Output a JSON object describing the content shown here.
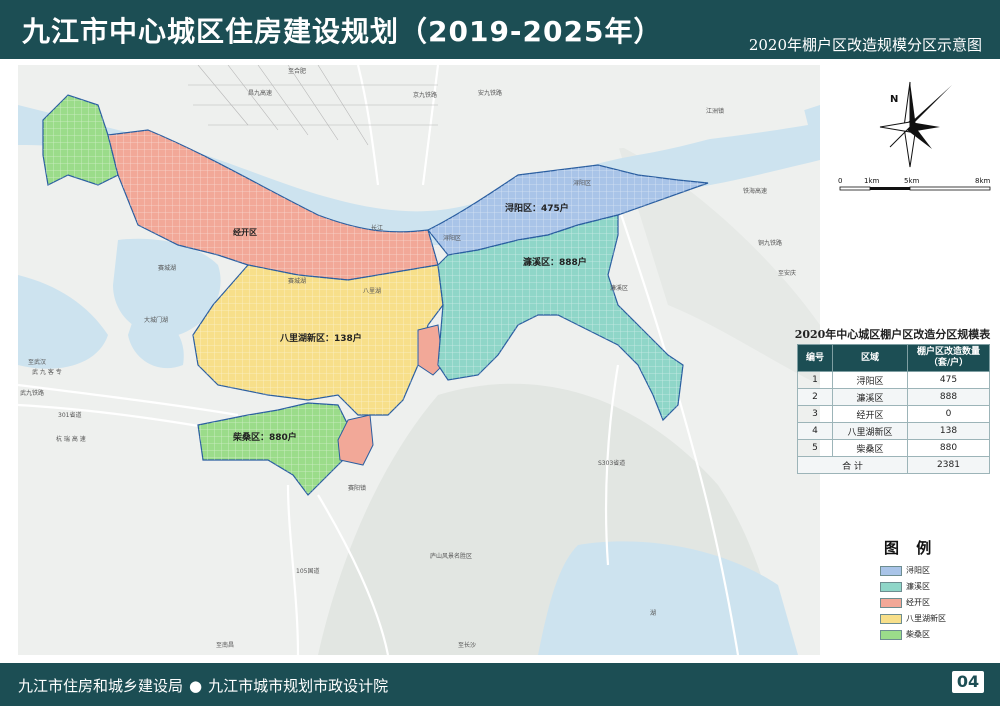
{
  "header": {
    "title": "九江市中心城区住房建设规划（2019-2025年）",
    "subtitle": "2020年棚户区改造规模分区示意图"
  },
  "footer": {
    "org1": "九江市住房和城乡建设局",
    "org2": "九江市城市规划市政设计院",
    "page": "04"
  },
  "map": {
    "district_labels": {
      "xunyang": "浔阳区：475户",
      "lianxi": "濂溪区：888户",
      "jingkai": "经开区",
      "balihu": "八里湖新区：138户",
      "chaisang": "柴桑区：880户"
    },
    "place_labels": {
      "xunyang_small": "浔阳区",
      "xunyang_small2": "浔阳区",
      "jiangzhou": "江洲镇",
      "lianxi_small": "濂溪区",
      "balihu_lake": "八里湖",
      "saicheng_lake": "赛城湖",
      "saicheng_lake2": "赛城湖",
      "dachengmen": "大城门湖",
      "changjiang": "长江",
      "lushan": "庐山风景名胜区",
      "saiyang": "赛阳镇",
      "road_105": "105国道",
      "road_301": "301省道",
      "road_hangrui": "杭 瑞 高 速",
      "road_wujiu_rail": "武九铁路",
      "road_zhiwuhan": "至武汉",
      "road_wujiu_exp": "武 九 客 专",
      "road_jingjiu": "京九铁路",
      "road_changjiu": "昌九高速",
      "road_tongjiu": "铜九铁路",
      "road_zhiananqing": "至安庆",
      "road_zhinanchang": "至南昌",
      "road_zhihefei": "至合肥",
      "road_anjiu": "安九铁路",
      "road_kuanghai": "铁海高速",
      "road_s303": "S303省道",
      "road_changzhi": "至长沙",
      "road_hu": "湖"
    },
    "north_label": "N",
    "scale_labels": [
      "0",
      "1km",
      "5km",
      "8km"
    ]
  },
  "plan_table": {
    "title": "2020年中心城区棚户区改造分区规模表",
    "headers": [
      "编号",
      "区域",
      "棚户区改造数量（套/户）"
    ],
    "rows": [
      [
        "1",
        "浔阳区",
        "475"
      ],
      [
        "2",
        "濂溪区",
        "888"
      ],
      [
        "3",
        "经开区",
        "0"
      ],
      [
        "4",
        "八里湖新区",
        "138"
      ],
      [
        "5",
        "柴桑区",
        "880"
      ]
    ],
    "total_label": "合 计",
    "total_value": "2381"
  },
  "legend": {
    "title": "图 例",
    "items": [
      {
        "label": "浔阳区",
        "color": "#a9c4e8"
      },
      {
        "label": "濂溪区",
        "color": "#8fd6c8"
      },
      {
        "label": "经开区",
        "color": "#f2a898"
      },
      {
        "label": "八里湖新区",
        "color": "#f7df8a"
      },
      {
        "label": "柴桑区",
        "color": "#9bdc8a"
      }
    ]
  },
  "colors": {
    "header_bg": "#1c4e54",
    "water": "#cde3ef",
    "xunyang": "#a9c4e8",
    "lianxi": "#8fd6c8",
    "jingkai": "#f2a898",
    "balihu": "#f7df8a",
    "chaisang": "#9bdc8a"
  }
}
